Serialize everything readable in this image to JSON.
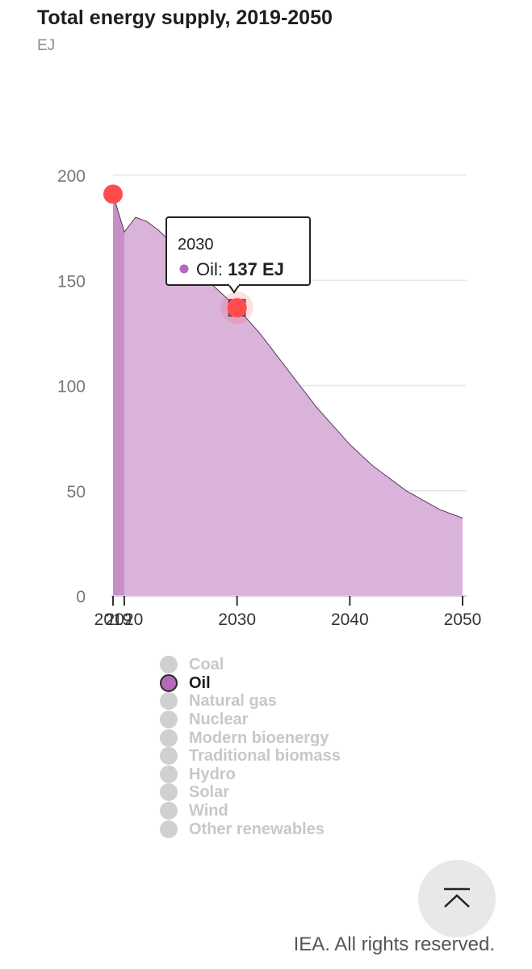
{
  "header": {
    "title": "Total energy supply, 2019-2050",
    "unit": "EJ"
  },
  "tooltip": {
    "year": "2030",
    "series": "Oil",
    "separator": ":",
    "value": "137 EJ"
  },
  "legend": {
    "items": [
      {
        "label": "Coal",
        "active": false
      },
      {
        "label": "Oil",
        "active": true
      },
      {
        "label": "Natural gas",
        "active": false
      },
      {
        "label": "Nuclear",
        "active": false
      },
      {
        "label": "Modern bioenergy",
        "active": false
      },
      {
        "label": "Traditional biomass",
        "active": false
      },
      {
        "label": "Hydro",
        "active": false
      },
      {
        "label": "Solar",
        "active": false
      },
      {
        "label": "Wind",
        "active": false
      },
      {
        "label": "Other renewables",
        "active": false
      }
    ]
  },
  "footer": {
    "copyright": "IEA. All rights reserved."
  },
  "scroll_top": {
    "icon": "chevron-up-bar-icon"
  },
  "colors": {
    "oil_fill": "#d9b3d9",
    "oil_fill_historic": "#c68fc7",
    "oil_dot": "#b569b9",
    "marker": "#ff4d4d",
    "grid": "#e6e6e6"
  },
  "chart_data": {
    "type": "area",
    "ylim": [
      0,
      200
    ],
    "xlim": [
      2019,
      2050
    ],
    "y_ticks": [
      0,
      50,
      100,
      150,
      200
    ],
    "x_ticks": [
      2019,
      2020,
      2030,
      2040,
      2050
    ],
    "y_tick_labels": [
      "0",
      "50",
      "100",
      "150",
      "200"
    ],
    "x_tick_labels": [
      "2019",
      "2020",
      "2030",
      "2040",
      "2050"
    ],
    "grid": true,
    "series": [
      {
        "name": "Oil",
        "x": [
          2019,
          2020,
          2021,
          2022,
          2023,
          2024,
          2025,
          2026,
          2027,
          2028,
          2029,
          2030,
          2031,
          2032,
          2033,
          2034,
          2035,
          2036,
          2037,
          2038,
          2039,
          2040,
          2041,
          2042,
          2043,
          2044,
          2045,
          2046,
          2047,
          2048,
          2049,
          2050
        ],
        "values": [
          191,
          173,
          180,
          178,
          174,
          169,
          163,
          157,
          152,
          147,
          142,
          137,
          131,
          125,
          118,
          111,
          104,
          97,
          90,
          84,
          78,
          72,
          67,
          62,
          58,
          54,
          50,
          47,
          44,
          41,
          39,
          37
        ]
      }
    ],
    "highlight_points": [
      {
        "x": 2019,
        "y": 191
      },
      {
        "x": 2030,
        "y": 137
      }
    ]
  }
}
